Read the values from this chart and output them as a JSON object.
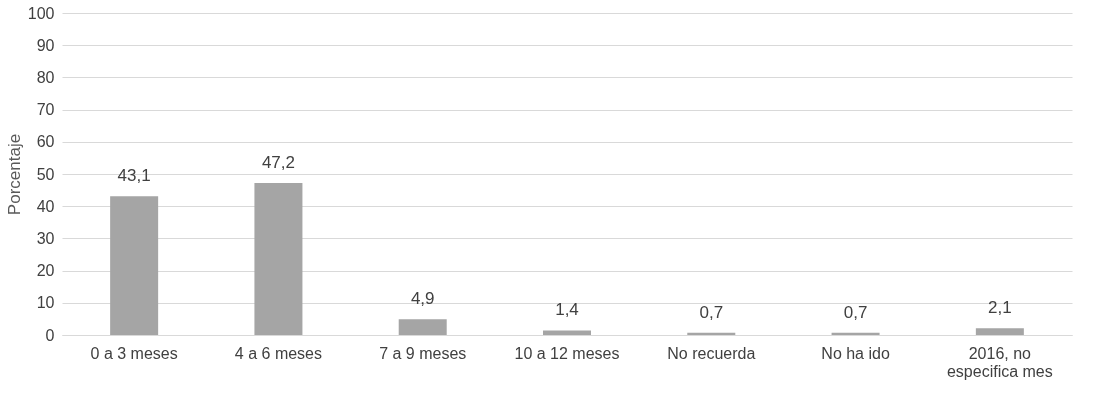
{
  "chart_data": {
    "type": "bar",
    "ylabel": "Porcentaje",
    "categories": [
      "0 a 3 meses",
      "4 a 6 meses",
      "7 a 9 meses",
      "10 a 12 meses",
      "No recuerda",
      "No ha ido",
      "2016, no especifica mes"
    ],
    "values": [
      43.1,
      47.2,
      4.9,
      1.4,
      0.7,
      0.7,
      2.1
    ],
    "value_labels": [
      "43,1",
      "47,2",
      "4,9",
      "1,4",
      "0,7",
      "0,7",
      "2,1"
    ],
    "color": "#a5a5a5",
    "ylim": [
      0,
      100
    ],
    "yticks": [
      0,
      10,
      20,
      30,
      40,
      50,
      60,
      70,
      80,
      90,
      100
    ],
    "grid": "y"
  }
}
